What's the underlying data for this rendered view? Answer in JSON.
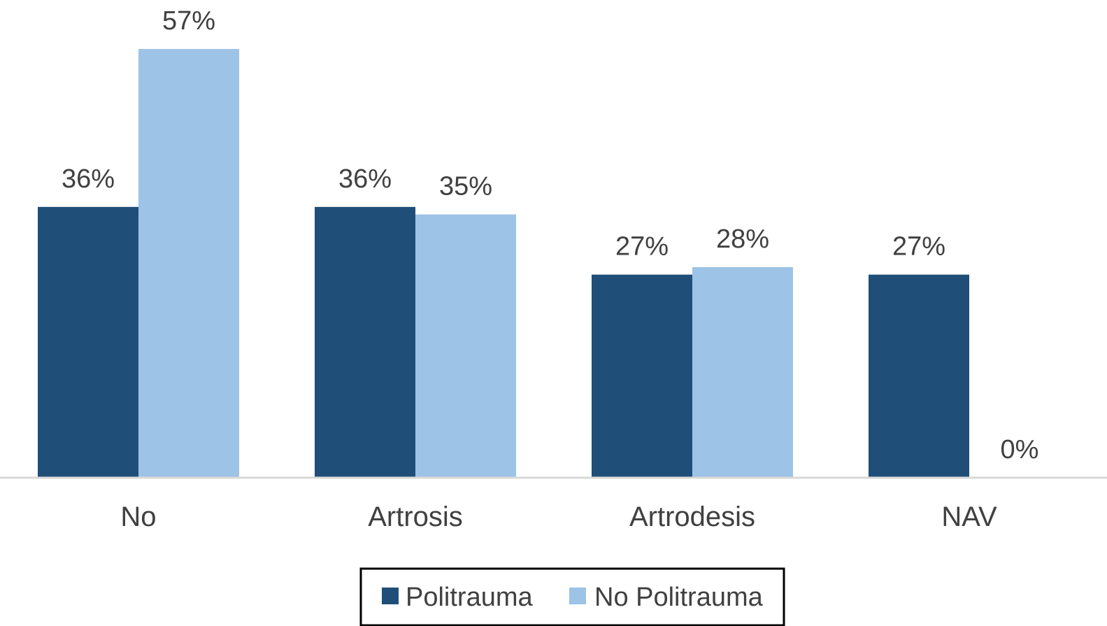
{
  "chart_data": {
    "type": "bar",
    "title": "",
    "xlabel": "",
    "ylabel": "",
    "categories": [
      "No",
      "Artrosis",
      "Artrodesis",
      "NAV"
    ],
    "series": [
      {
        "name": "Politrauma",
        "values": [
          36,
          36,
          27,
          27
        ],
        "color": "#1f4e79",
        "labels": [
          "36%",
          "36%",
          "27%",
          "27%"
        ]
      },
      {
        "name": "No Politrauma",
        "values": [
          57,
          35,
          28,
          0
        ],
        "color": "#9dc3e6",
        "labels": [
          "57%",
          "35%",
          "28%",
          "0%"
        ]
      }
    ],
    "ylim": [
      0,
      57
    ],
    "value_unit": "%",
    "grid": false,
    "legend_position": "bottom"
  }
}
